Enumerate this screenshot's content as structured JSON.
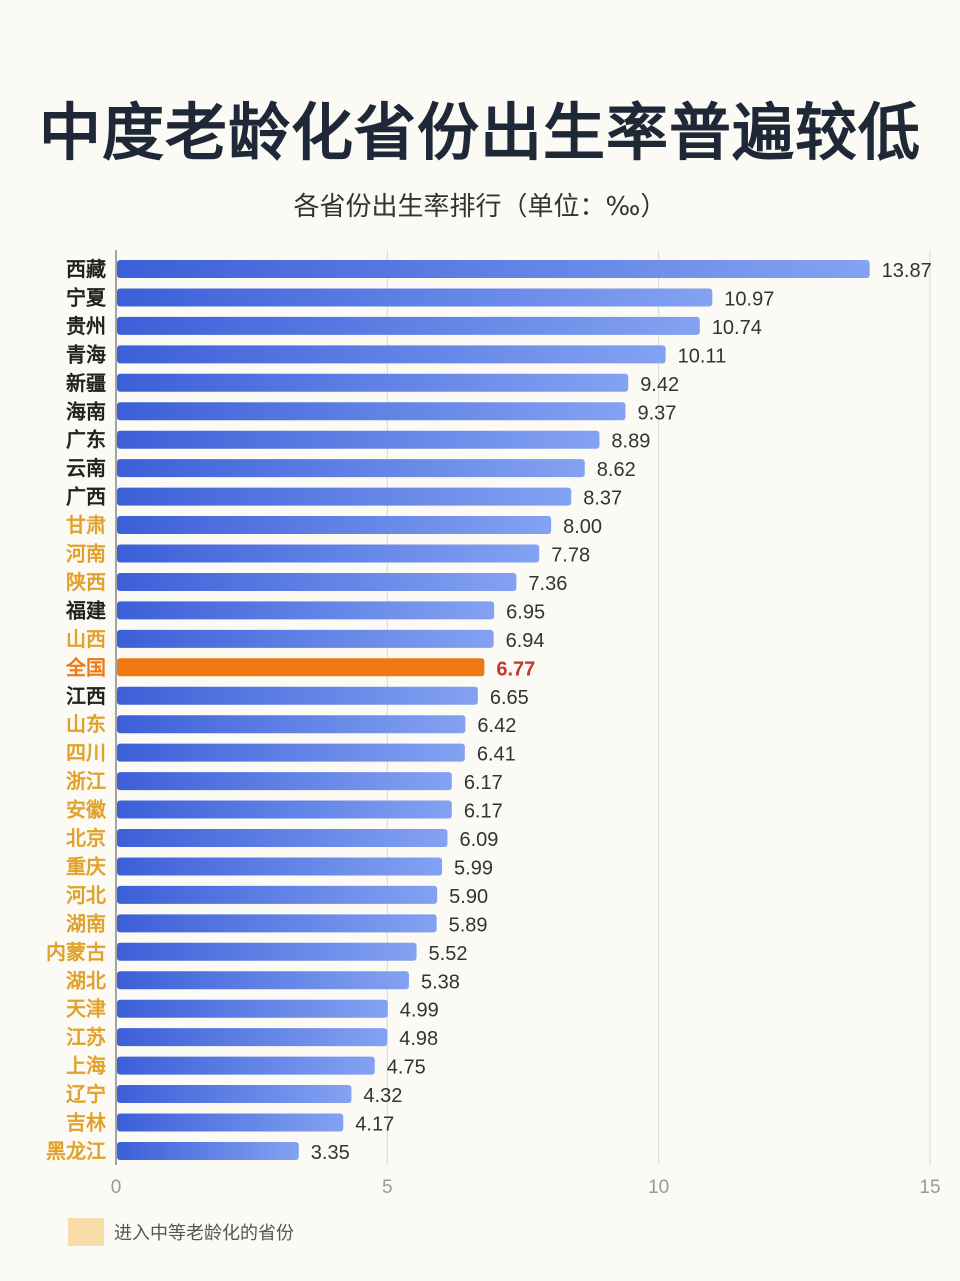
{
  "chart_data": {
    "type": "bar",
    "orientation": "horizontal",
    "title": "中度老龄化省份出生率普遍较低",
    "subtitle": "各省份出生率排行（单位：‰）",
    "categories": [
      "西藏",
      "宁夏",
      "贵州",
      "青海",
      "新疆",
      "海南",
      "广东",
      "云南",
      "广西",
      "甘肃",
      "河南",
      "陕西",
      "福建",
      "山西",
      "全国",
      "江西",
      "山东",
      "四川",
      "浙江",
      "安徽",
      "北京",
      "重庆",
      "河北",
      "湖南",
      "内蒙古",
      "湖北",
      "天津",
      "江苏",
      "上海",
      "辽宁",
      "吉林",
      "黑龙江"
    ],
    "values": [
      13.87,
      10.97,
      10.74,
      10.11,
      9.42,
      9.37,
      8.89,
      8.62,
      8.37,
      8.0,
      7.78,
      7.36,
      6.95,
      6.94,
      6.77,
      6.65,
      6.42,
      6.41,
      6.17,
      6.17,
      6.09,
      5.99,
      5.9,
      5.89,
      5.52,
      5.38,
      4.99,
      4.98,
      4.75,
      4.32,
      4.17,
      3.35
    ],
    "value_labels": [
      "13.87",
      "10.97",
      "10.74",
      "10.11",
      "9.42",
      "9.37",
      "8.89",
      "8.62",
      "8.37",
      "8.00",
      "7.78",
      "7.36",
      "6.95",
      "6.94",
      "6.77",
      "6.65",
      "6.42",
      "6.41",
      "6.17",
      "6.17",
      "6.09",
      "5.99",
      "5.90",
      "5.89",
      "5.52",
      "5.38",
      "4.99",
      "4.98",
      "4.75",
      "4.32",
      "4.17",
      "3.35"
    ],
    "highlighted": [
      false,
      false,
      false,
      false,
      false,
      false,
      false,
      false,
      false,
      true,
      true,
      true,
      false,
      true,
      false,
      false,
      true,
      true,
      true,
      true,
      true,
      true,
      true,
      true,
      true,
      true,
      true,
      true,
      true,
      true,
      true,
      true
    ],
    "national_category": "全国",
    "xlim": [
      0,
      15
    ],
    "xticks": [
      "0",
      "5",
      "10",
      "15"
    ],
    "grid": true,
    "legend": {
      "label": "进入中等老龄化的省份",
      "placement": "bottom-left",
      "color": "#f7dca8"
    },
    "colors": {
      "bar_start": "#3c5fd8",
      "bar_end": "#84a2f2",
      "national_bar": "#f07813",
      "national_label": "#c0392b",
      "highlight_label": "#e0a22c",
      "normal_label": "#222222"
    }
  }
}
